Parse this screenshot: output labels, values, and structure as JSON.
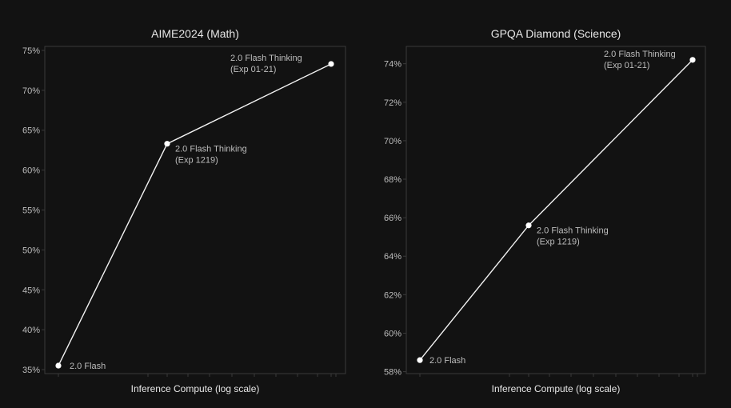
{
  "colors": {
    "background": "#121212",
    "frame": "#3a3a3a",
    "text": "#e6e6e6",
    "tick_text": "#bdbdbd",
    "label_text": "#bdbdbd",
    "line": "#f2f2f2",
    "point": "#ffffff"
  },
  "chart_data": [
    {
      "type": "line",
      "title": "AIME2024 (Math)",
      "xlabel": "Inference Compute (log scale)",
      "ylabel": "",
      "x_scale": "log",
      "ylim": [
        34.5,
        75.5
      ],
      "yticks": [
        35,
        40,
        45,
        50,
        55,
        60,
        65,
        70,
        75
      ],
      "ytick_labels": [
        "35%",
        "40%",
        "45%",
        "50%",
        "55%",
        "60%",
        "65%",
        "70%",
        "75%"
      ],
      "grid": false,
      "series": [
        {
          "points": [
            {
              "y": 35.5,
              "label": [
                "2.0 Flash"
              ]
            },
            {
              "y": 63.3,
              "label": [
                "2.0 Flash Thinking",
                "(Exp 1219)"
              ]
            },
            {
              "y": 73.3,
              "label": [
                "2.0 Flash Thinking",
                "(Exp 01-21)"
              ]
            }
          ]
        }
      ]
    },
    {
      "type": "line",
      "title": "GPQA Diamond (Science)",
      "xlabel": "Inference Compute (log scale)",
      "ylabel": "",
      "x_scale": "log",
      "ylim": [
        57.9,
        74.9
      ],
      "yticks": [
        58,
        60,
        62,
        64,
        66,
        68,
        70,
        72,
        74
      ],
      "ytick_labels": [
        "58%",
        "60%",
        "62%",
        "64%",
        "66%",
        "68%",
        "70%",
        "72%",
        "74%"
      ],
      "grid": false,
      "series": [
        {
          "points": [
            {
              "y": 58.6,
              "label": [
                "2.0 Flash"
              ]
            },
            {
              "y": 65.6,
              "label": [
                "2.0 Flash Thinking",
                "(Exp 1219)"
              ]
            },
            {
              "y": 74.2,
              "label": [
                "2.0 Flash Thinking",
                "(Exp 01-21)"
              ]
            }
          ]
        }
      ]
    }
  ]
}
